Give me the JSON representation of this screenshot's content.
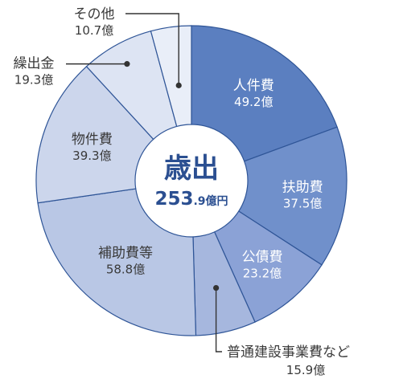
{
  "chart_data": {
    "type": "pie",
    "donut": true,
    "center": {
      "title": "歳出",
      "total_int": "253",
      "total_dec": ".9",
      "unit": "億円"
    },
    "categories": [
      "人件費",
      "扶助費",
      "公債費",
      "普通建設事業費など",
      "補助費等",
      "物件費",
      "繰出金",
      "その他"
    ],
    "values": [
      49.2,
      37.5,
      23.2,
      15.9,
      58.8,
      39.3,
      19.3,
      10.7
    ],
    "value_labels": [
      "49.2億",
      "37.5億",
      "23.2億",
      "15.9億",
      "58.8億",
      "39.3億",
      "19.3億",
      "10.7億"
    ],
    "colors": [
      "#5b7fc0",
      "#7090cb",
      "#8ba2d6",
      "#a6b7de",
      "#b9c7e5",
      "#ccd6ec",
      "#dde4f3",
      "#e9eef8"
    ],
    "label_colors": [
      "#ffffff",
      "#ffffff",
      "#ffffff",
      "#3a3a3a",
      "#3a3a3a",
      "#3a3a3a",
      "#3a3a3a",
      "#3a3a3a"
    ],
    "legend": "none"
  }
}
